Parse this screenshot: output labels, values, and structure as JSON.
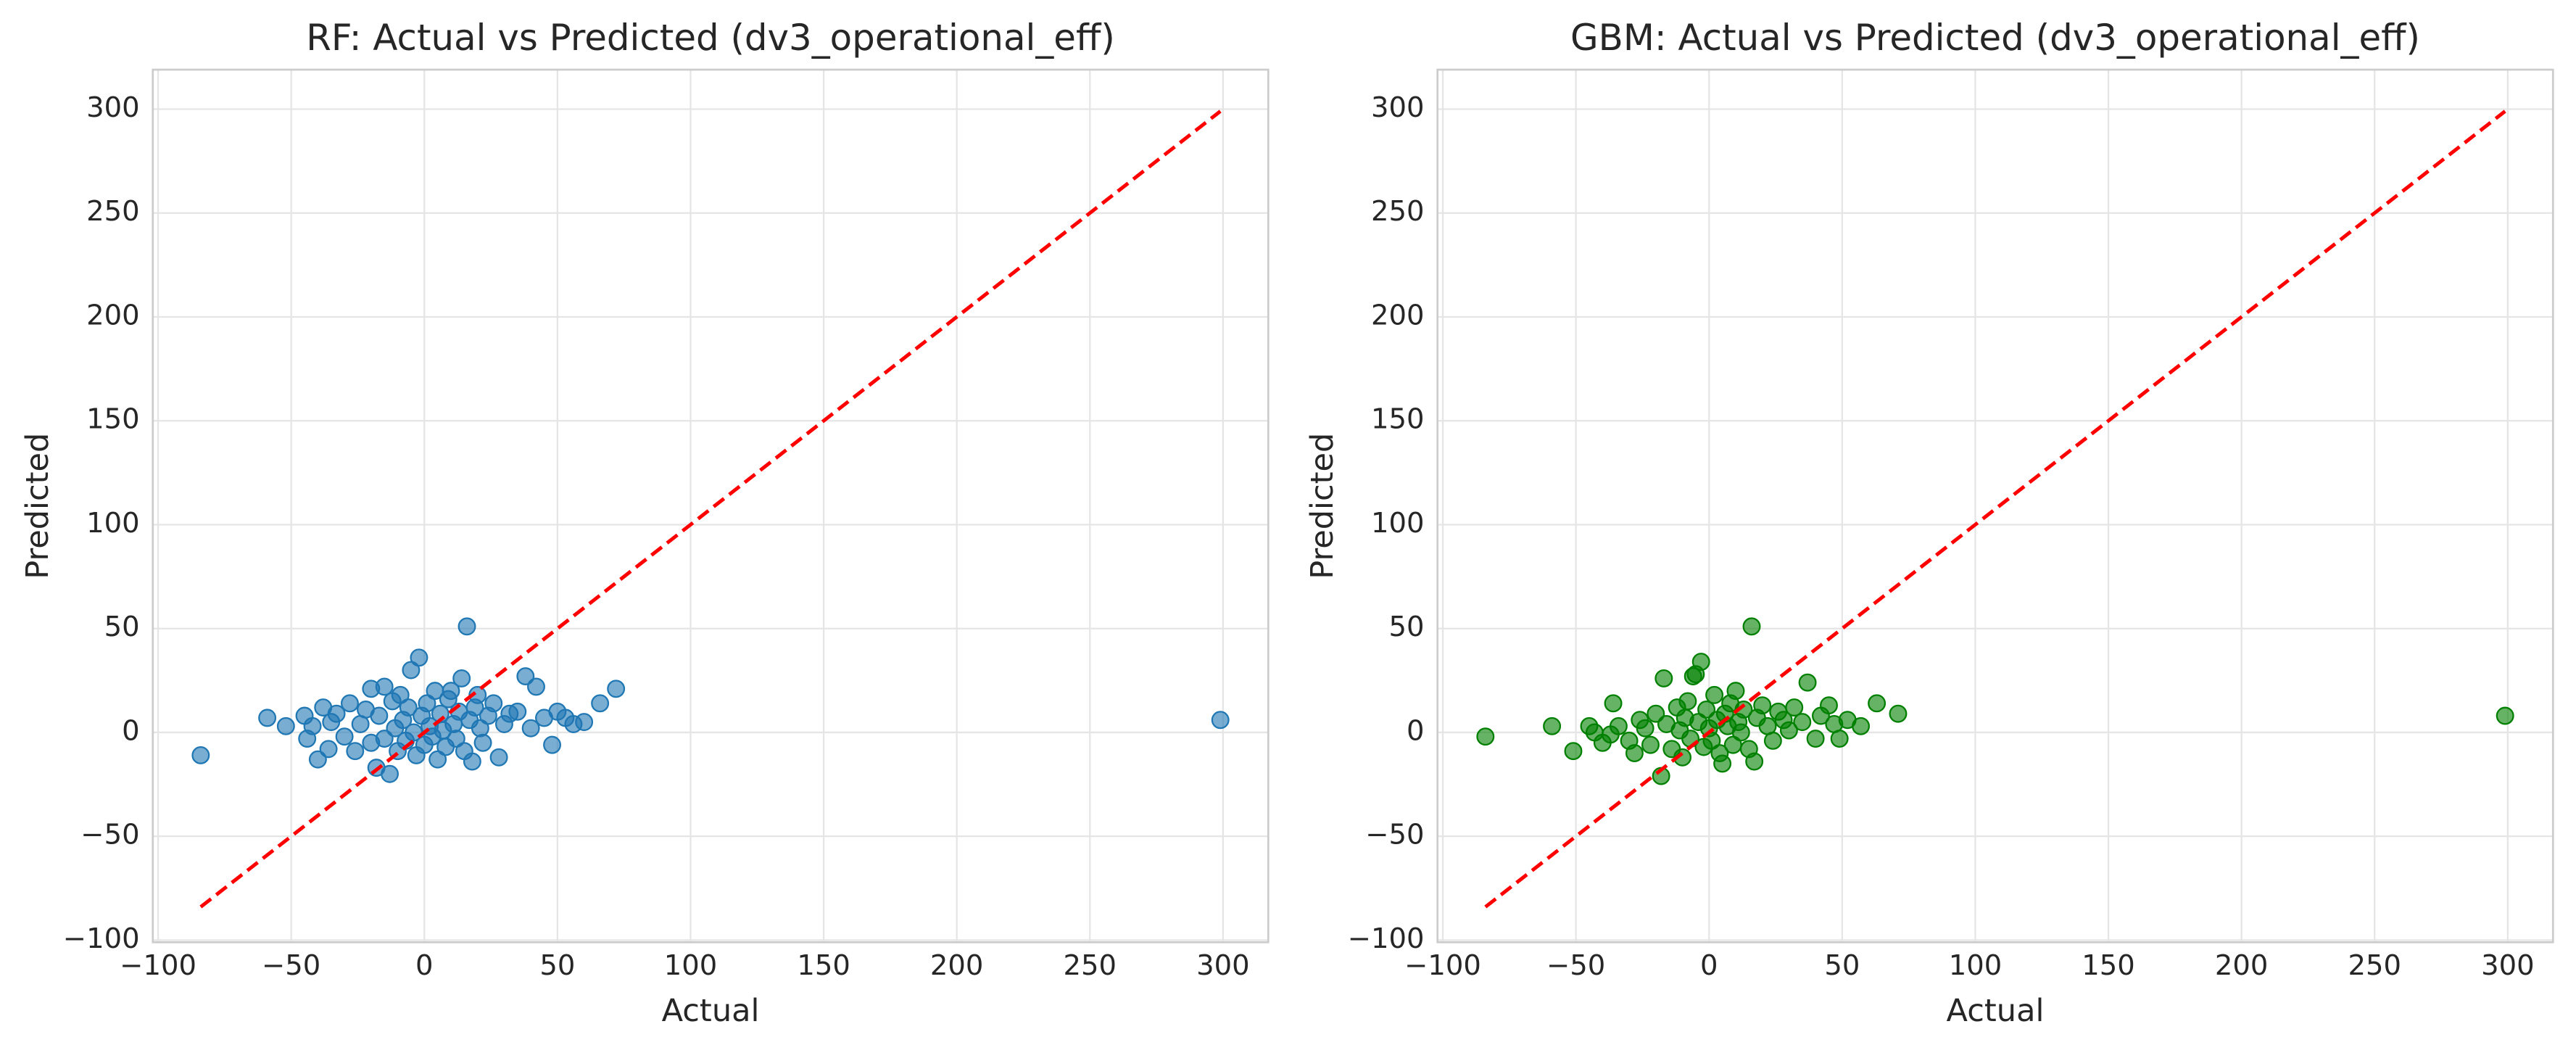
{
  "chart_data": [
    {
      "type": "scatter",
      "title": "RF: Actual vs Predicted (dv3_operational_eff)",
      "xlabel": "Actual",
      "ylabel": "Predicted",
      "color": "#1f77b4",
      "grid": true,
      "x": [
        -84,
        -59,
        -52,
        -45,
        -44,
        -42,
        -40,
        -38,
        -36,
        -35,
        -33,
        -30,
        -28,
        -26,
        -24,
        -22,
        -20,
        -20,
        -18,
        -17,
        -15,
        -15,
        -13,
        -12,
        -11,
        -10,
        -9,
        -8,
        -7,
        -6,
        -5,
        -4,
        -3,
        -2,
        -1,
        0,
        1,
        2,
        3,
        4,
        5,
        6,
        7,
        8,
        9,
        10,
        11,
        12,
        13,
        14,
        15,
        16,
        17,
        18,
        19,
        20,
        21,
        22,
        24,
        26,
        28,
        30,
        32,
        35,
        38,
        40,
        42,
        45,
        48,
        50,
        53,
        56,
        60,
        66,
        72,
        299
      ],
      "y": [
        -11,
        7,
        3,
        8,
        -3,
        3,
        -13,
        12,
        -8,
        5,
        9,
        -2,
        14,
        -9,
        4,
        11,
        21,
        -5,
        -17,
        8,
        22,
        -3,
        -20,
        15,
        2,
        -9,
        18,
        6,
        -4,
        12,
        30,
        0,
        -11,
        36,
        8,
        -6,
        14,
        3,
        -2,
        20,
        -13,
        9,
        1,
        -7,
        16,
        20,
        4,
        -3,
        10,
        26,
        -9,
        51,
        6,
        -14,
        12,
        18,
        2,
        -5,
        8,
        14,
        -12,
        4,
        9,
        10,
        27,
        2,
        22,
        7,
        -6,
        10,
        7,
        4,
        5,
        14,
        21,
        6
      ],
      "reference_line": {
        "x": [
          -84,
          299
        ],
        "y": [
          -84,
          299
        ],
        "color": "#ff0000"
      },
      "xlim": [
        -102,
        317
      ],
      "ylim": [
        -101,
        319
      ],
      "xticks": [
        {
          "value": -100,
          "label": "−100"
        },
        {
          "value": -50,
          "label": "−50"
        },
        0,
        50,
        100,
        150,
        200,
        250,
        300
      ],
      "yticks": [
        {
          "value": -100,
          "label": "−100"
        },
        {
          "value": -50,
          "label": "−50"
        },
        0,
        50,
        100,
        150,
        200,
        250,
        300
      ]
    },
    {
      "type": "scatter",
      "title": "GBM: Actual vs Predicted (dv3_operational_eff)",
      "xlabel": "Actual",
      "ylabel": "Predicted",
      "color": "#008000",
      "grid": true,
      "x": [
        -84,
        -59,
        -51,
        -45,
        -43,
        -40,
        -37,
        -36,
        -34,
        -30,
        -28,
        -26,
        -24,
        -22,
        -20,
        -18,
        -17,
        -16,
        -14,
        -12,
        -11,
        -10,
        -9,
        -8,
        -7,
        -6,
        -5,
        -4,
        -3,
        -2,
        -1,
        0,
        1,
        2,
        3,
        4,
        5,
        6,
        7,
        8,
        9,
        10,
        11,
        12,
        13,
        15,
        16,
        17,
        18,
        20,
        22,
        24,
        26,
        28,
        30,
        32,
        35,
        37,
        40,
        42,
        45,
        47,
        49,
        52,
        57,
        63,
        71,
        299
      ],
      "y": [
        -2,
        3,
        -9,
        3,
        0,
        -5,
        -1,
        14,
        3,
        -4,
        -10,
        6,
        2,
        -6,
        9,
        -21,
        26,
        4,
        -8,
        12,
        1,
        -12,
        7,
        15,
        -3,
        27,
        28,
        5,
        34,
        -7,
        11,
        2,
        -4,
        18,
        6,
        -10,
        -15,
        9,
        3,
        14,
        -6,
        20,
        5,
        0,
        11,
        -8,
        51,
        -14,
        7,
        13,
        3,
        -4,
        10,
        6,
        1,
        12,
        5,
        24,
        -3,
        8,
        13,
        4,
        -3,
        6,
        3,
        14,
        9,
        8
      ],
      "reference_line": {
        "x": [
          -84,
          299
        ],
        "y": [
          -84,
          299
        ],
        "color": "#ff0000"
      },
      "xlim": [
        -102,
        317
      ],
      "ylim": [
        -101,
        319
      ],
      "xticks": [
        {
          "value": -100,
          "label": "−100"
        },
        {
          "value": -50,
          "label": "−50"
        },
        0,
        50,
        100,
        150,
        200,
        250,
        300
      ],
      "yticks": [
        {
          "value": -100,
          "label": "−100"
        },
        {
          "value": -50,
          "label": "−50"
        },
        0,
        50,
        100,
        150,
        200,
        250,
        300
      ]
    }
  ]
}
